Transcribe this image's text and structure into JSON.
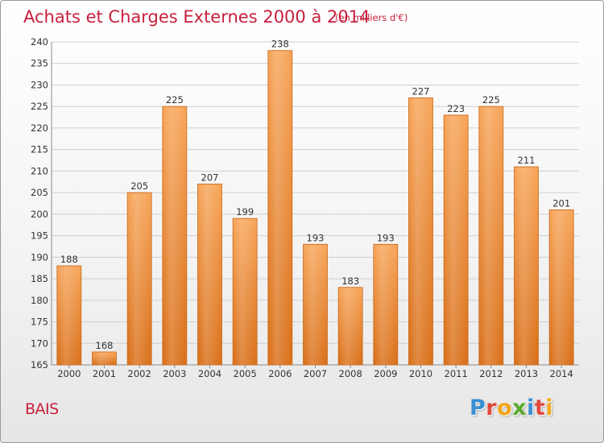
{
  "chart_data": {
    "type": "bar",
    "title": "Achats et Charges Externes 2000 à 2014",
    "subtitle": "(en milliers d'€)",
    "categories": [
      "2000",
      "2001",
      "2002",
      "2003",
      "2004",
      "2005",
      "2006",
      "2007",
      "2008",
      "2009",
      "2010",
      "2011",
      "2012",
      "2013",
      "2014"
    ],
    "values": [
      188,
      168,
      205,
      225,
      207,
      199,
      238,
      193,
      183,
      193,
      227,
      223,
      225,
      211,
      201
    ],
    "ylim": [
      165,
      240
    ],
    "yticks": [
      165,
      170,
      175,
      180,
      185,
      190,
      195,
      200,
      205,
      210,
      215,
      220,
      225,
      230,
      235,
      240
    ],
    "grid": true,
    "bar_color": "#f28a2a"
  },
  "footer": {
    "place": "BAIS",
    "logo_letters": [
      "P",
      "r",
      "o",
      "x",
      "i",
      "t",
      "i"
    ],
    "logo_colors": [
      "#3a8fd4",
      "#e0493c",
      "#f2a71b",
      "#5aaa2c",
      "#3a8fd4",
      "#e0493c",
      "#f2a71b"
    ]
  }
}
